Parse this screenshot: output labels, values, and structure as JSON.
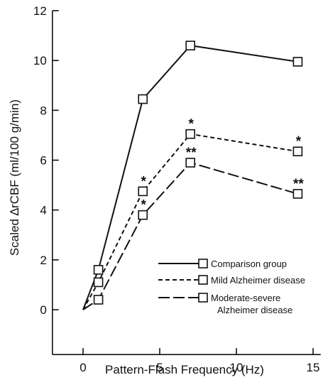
{
  "chart_data": {
    "type": "line",
    "title": "",
    "xlabel": "Pattern-Flash Frequency (Hz)",
    "ylabel": "Scaled ∆rCBF (ml/100 g/min)",
    "xlim": [
      -2,
      15.5
    ],
    "ylim": [
      -1.8,
      12
    ],
    "xticks": [
      0,
      5,
      10,
      15
    ],
    "yticks": [
      0,
      2,
      4,
      6,
      8,
      10,
      12
    ],
    "grid": false,
    "legend_position": "bottom-right",
    "series": [
      {
        "name": "Comparison group",
        "style": "solid",
        "x": [
          0,
          1,
          3.9,
          7,
          14
        ],
        "y": [
          0,
          1.6,
          8.45,
          10.6,
          9.95
        ],
        "marker_x": [
          1,
          3.9,
          7,
          14
        ]
      },
      {
        "name": "Mild Alzheimer disease",
        "style": "dashed",
        "x": [
          0,
          1,
          3.9,
          7,
          14
        ],
        "y": [
          0,
          1.1,
          4.75,
          7.05,
          6.35
        ],
        "marker_x": [
          1,
          3.9,
          7,
          14
        ]
      },
      {
        "name": "Moderate-severe Alzheimer disease",
        "legend_lines": [
          "Moderate-severe",
          "Alzheimer disease"
        ],
        "style": "longdash",
        "x": [
          0,
          1,
          3.9,
          7,
          14
        ],
        "y": [
          0,
          0.4,
          3.8,
          5.9,
          4.65
        ],
        "marker_x": [
          1,
          3.9,
          7,
          14
        ]
      }
    ],
    "annotations": [
      {
        "text": "*",
        "x": 3.9,
        "y": 4.75
      },
      {
        "text": "*",
        "x": 3.9,
        "y": 3.8
      },
      {
        "text": "*",
        "x": 7,
        "y": 7.05
      },
      {
        "text": "**",
        "x": 7,
        "y": 5.9
      },
      {
        "text": "*",
        "x": 14,
        "y": 6.35
      },
      {
        "text": "**",
        "x": 14,
        "y": 4.65
      }
    ]
  }
}
